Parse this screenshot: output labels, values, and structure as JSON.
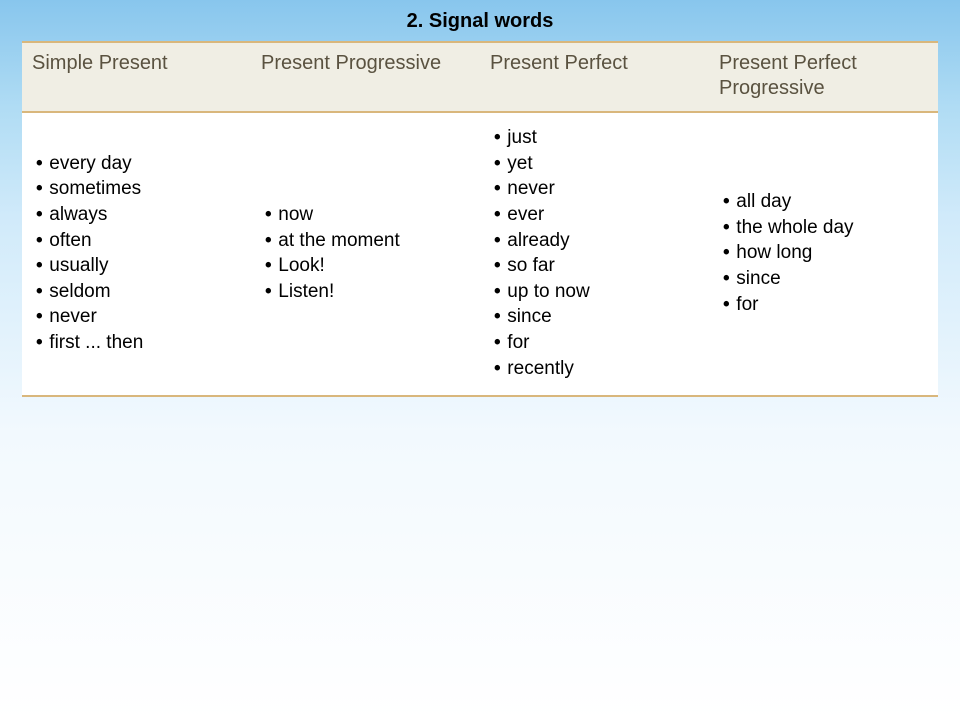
{
  "title": "2. Signal words",
  "columns": [
    "Simple Present",
    "Present Progressive",
    "Present Perfect",
    "Present Perfect Progressive"
  ],
  "cells": [
    [
      "every day",
      "sometimes",
      "always",
      "often",
      "usually",
      "seldom",
      "never",
      "first ... then"
    ],
    [
      "now",
      "at the moment",
      "Look!",
      "Listen!"
    ],
    [
      "just",
      "yet",
      "never",
      "ever",
      "already",
      "so far",
      "up to now",
      "since",
      "for",
      "recently"
    ],
    [
      "all day",
      "the whole day",
      "how long",
      "since",
      "for"
    ]
  ],
  "colors": {
    "bg_gradient_top": "#88c6ed",
    "bg_gradient_bottom": "#ffffff",
    "header_bg": "#f0eee4",
    "header_text": "#5a5240",
    "table_border": "#d9b77c",
    "cell_bg": "#ffffff",
    "cell_text": "#000000",
    "title_text": "#000000"
  },
  "typography": {
    "title_fontsize": 20,
    "title_weight": "bold",
    "header_fontsize": 20,
    "cell_fontsize": 19,
    "font_family": "Trebuchet MS"
  },
  "layout": {
    "columns_count": 4,
    "column_width_pct": 25,
    "slide_width": 960,
    "slide_height": 720
  }
}
